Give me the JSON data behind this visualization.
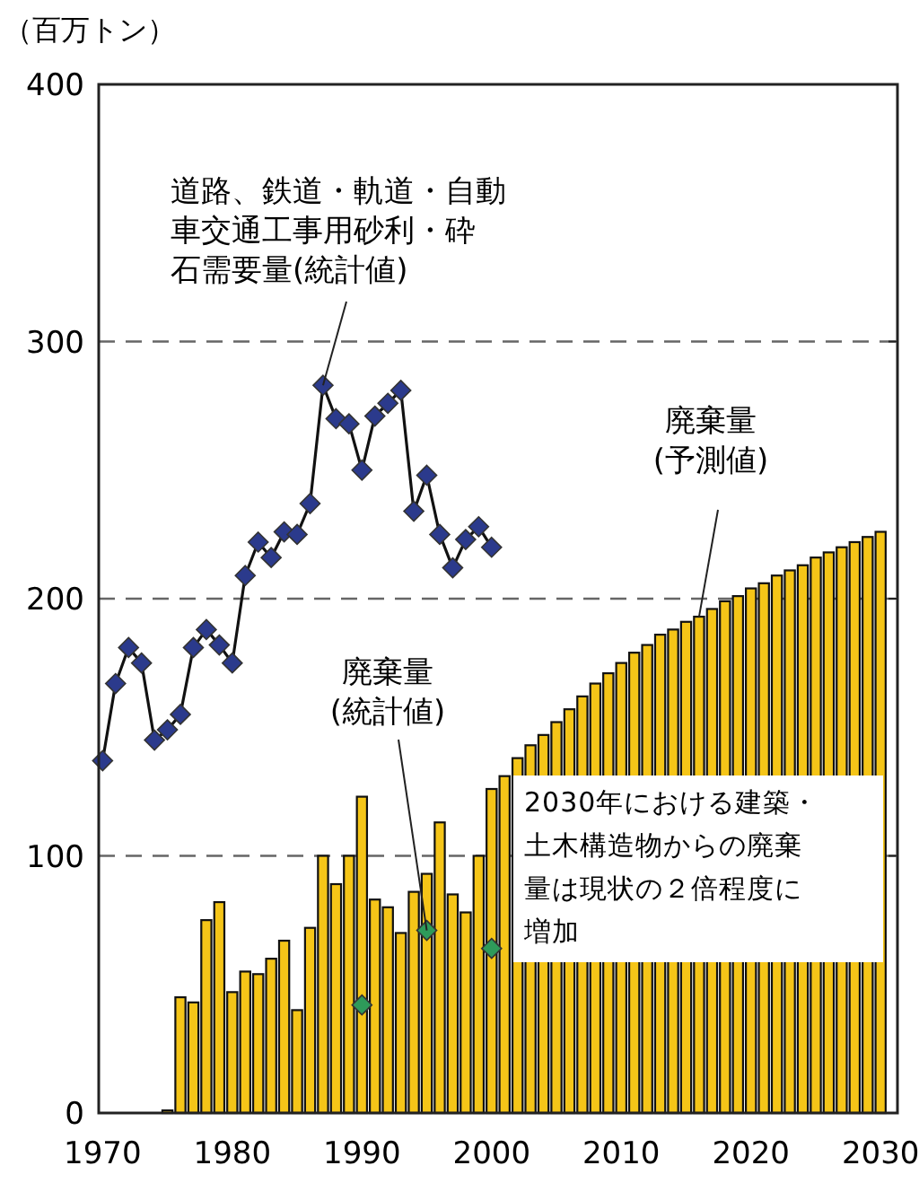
{
  "chart_data": {
    "type": "bar",
    "ylabel": "（百万トン）",
    "x": [
      1970,
      1971,
      1972,
      1973,
      1974,
      1975,
      1976,
      1977,
      1978,
      1979,
      1980,
      1981,
      1982,
      1983,
      1984,
      1985,
      1986,
      1987,
      1988,
      1989,
      1990,
      1991,
      1992,
      1993,
      1994,
      1995,
      1996,
      1997,
      1998,
      1999,
      2000,
      2001,
      2002,
      2003,
      2004,
      2005,
      2006,
      2007,
      2008,
      2009,
      2010,
      2011,
      2012,
      2013,
      2014,
      2015,
      2016,
      2017,
      2018,
      2019,
      2020,
      2021,
      2022,
      2023,
      2024,
      2025,
      2026,
      2027,
      2028,
      2029,
      2030
    ],
    "series": [
      {
        "color": "#f5c518",
        "values": [
          0,
          0,
          0,
          0,
          0,
          1,
          45,
          43,
          75,
          82,
          47,
          55,
          54,
          60,
          67,
          40,
          72,
          100,
          89,
          100,
          123,
          83,
          80,
          70,
          86,
          93,
          113,
          85,
          78,
          100,
          126,
          131,
          138,
          143,
          147,
          152,
          157,
          162,
          167,
          171,
          175,
          179,
          182,
          186,
          188,
          191,
          193,
          196,
          199,
          201,
          204,
          206,
          209,
          211,
          213,
          216,
          218,
          220,
          222,
          224,
          226
        ]
      },
      {
        "type": "line",
        "color": "#2b3a8c",
        "marker": "diamond",
        "x": [
          1970,
          1971,
          1972,
          1973,
          1974,
          1975,
          1976,
          1977,
          1978,
          1979,
          1980,
          1981,
          1982,
          1983,
          1984,
          1985,
          1986,
          1987,
          1988,
          1989,
          1990,
          1991,
          1992,
          1993,
          1994,
          1995,
          1996,
          1997,
          1998,
          1999,
          2000
        ],
        "values": [
          137,
          167,
          181,
          175,
          145,
          149,
          155,
          181,
          188,
          182,
          175,
          209,
          222,
          216,
          226,
          225,
          237,
          283,
          270,
          268,
          250,
          271,
          276,
          281,
          234,
          248,
          225,
          212,
          223,
          228,
          220
        ]
      },
      {
        "type": "scatter",
        "color": "#2e9a5a",
        "marker": "diamond",
        "x": [
          1990,
          1995,
          2000
        ],
        "values": [
          42,
          71,
          64
        ]
      }
    ],
    "xlim": [
      1969.7,
      2031.3
    ],
    "xticks": [
      1970,
      1980,
      1990,
      2000,
      2010,
      2020,
      2030
    ],
    "ylim": [
      0,
      400
    ],
    "yticks": [
      0,
      100,
      200,
      300,
      400
    ],
    "grid": "y",
    "annotations": [
      {
        "text": "道路、鉄道・軌道・自動車交通工事用砂利・砕石需要量(統計値)",
        "x": 1987,
        "y": 283
      },
      {
        "text": "廃棄量(統計値)",
        "x": 1995,
        "y": 71
      },
      {
        "text": "廃棄量(予測値)",
        "x": 2016,
        "y": 193
      },
      "2030年における建築・土木構造物からの廃棄量は現状の２倍程度に増加"
    ]
  }
}
